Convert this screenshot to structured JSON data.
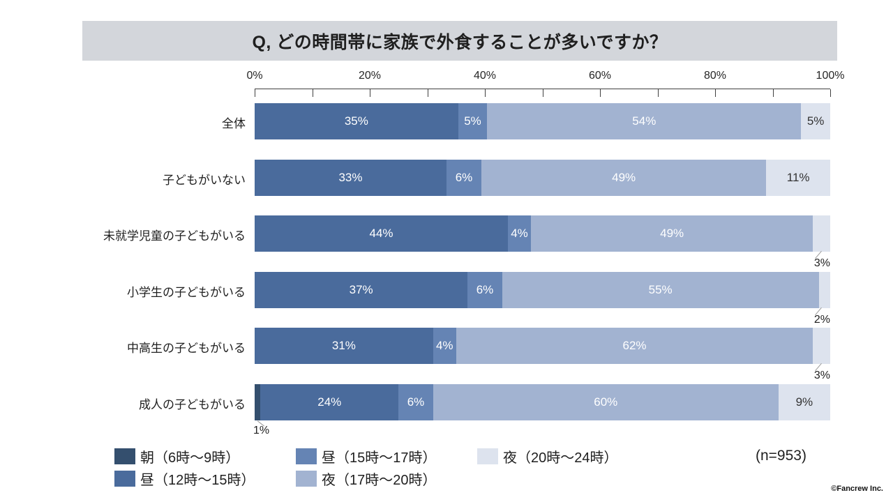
{
  "title_banner": "Q, どの時間帯に家族で外食することが多いですか？",
  "footer": {
    "sample_note": "(n=953)",
    "credit": "©Fancrew Inc."
  },
  "colors": {
    "banner_bg": "#d3d6db",
    "axis": "#404040",
    "leader": "#9a9a9a",
    "label_dark": "#333333",
    "label_light": "#ffffff"
  },
  "chart_data": {
    "type": "bar",
    "variant": "horizontal-stacked-100",
    "title": "Q, どの時間帯に家族で外食することが多いですか？",
    "categories": [
      "全体",
      "子どもがいない",
      "未就学児童の子どもがいる",
      "小学生の子どもがいる",
      "中高生の子どもがいる",
      "成人の子どもがいる"
    ],
    "series": [
      {
        "name": "朝（6時～9時）",
        "color": "#344f6e",
        "values": [
          0,
          0,
          0,
          0,
          0,
          1
        ]
      },
      {
        "name": "昼（12時～15時）",
        "color": "#4a6b9c",
        "values": [
          35,
          33,
          44,
          37,
          31,
          24
        ]
      },
      {
        "name": "昼（15時～17時）",
        "color": "#6584b4",
        "values": [
          5,
          6,
          4,
          6,
          4,
          6
        ]
      },
      {
        "name": "夜（17時～20時）",
        "color": "#a2b3d1",
        "values": [
          54,
          49,
          49,
          55,
          62,
          60
        ]
      },
      {
        "name": "夜（20時～24時）",
        "color": "#dde3ee",
        "values": [
          5,
          11,
          3,
          2,
          3,
          9
        ]
      }
    ],
    "xlim": [
      0,
      100
    ],
    "x_tick_labels": [
      "0%",
      "20%",
      "40%",
      "60%",
      "80%",
      "100%"
    ],
    "minor_tick_step_percent": 10,
    "grid": false,
    "legend_position": "bottom-left",
    "value_suffix": "%"
  }
}
